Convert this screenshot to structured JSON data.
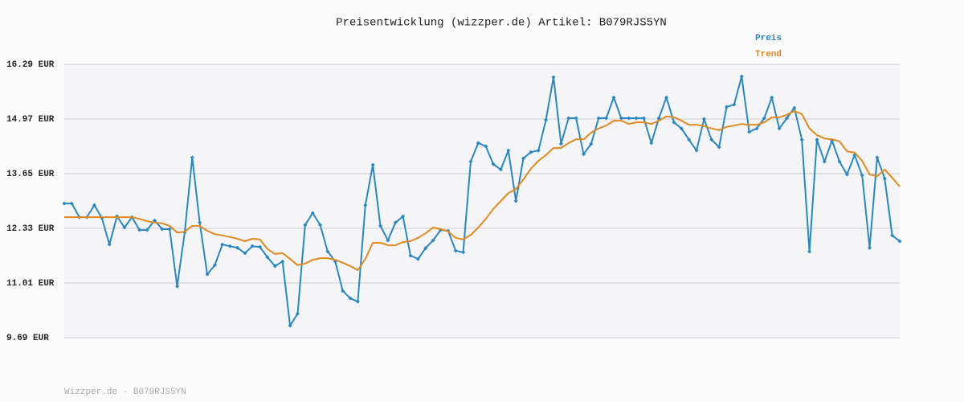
{
  "chart_data": {
    "type": "line",
    "title": "Preisentwicklung (wizzper.de) Artikel: B079RJS5YN",
    "footer": "Wizzper.de - B079RJS5YN",
    "ylim": [
      9.69,
      16.29
    ],
    "yticks": [
      {
        "value": 9.69,
        "label": "9.69 EUR"
      },
      {
        "value": 11.01,
        "label": "11.01 EUR"
      },
      {
        "value": 12.33,
        "label": "12.33 EUR"
      },
      {
        "value": 13.65,
        "label": "13.65 EUR"
      },
      {
        "value": 14.97,
        "label": "14.97 EUR"
      },
      {
        "value": 16.29,
        "label": "16.29 EUR"
      }
    ],
    "grid": true,
    "legend": "top-right",
    "series": [
      {
        "name": "Preis",
        "color": "#2a87c0",
        "markers": true,
        "values": [
          12.93,
          12.93,
          12.6,
          12.6,
          12.89,
          12.58,
          11.94,
          12.62,
          12.35,
          12.6,
          12.29,
          12.29,
          12.52,
          12.31,
          12.31,
          10.93,
          12.23,
          14.04,
          12.47,
          11.22,
          11.44,
          11.94,
          11.9,
          11.86,
          11.73,
          11.9,
          11.88,
          11.63,
          11.42,
          11.53,
          9.98,
          10.27,
          12.41,
          12.7,
          12.41,
          11.77,
          11.53,
          10.82,
          10.64,
          10.56,
          12.89,
          13.86,
          12.39,
          12.04,
          12.47,
          12.62,
          11.67,
          11.59,
          11.85,
          12.04,
          12.29,
          12.27,
          11.79,
          11.75,
          13.94,
          14.39,
          14.31,
          13.88,
          13.75,
          14.21,
          12.99,
          14.02,
          14.17,
          14.21,
          14.95,
          15.98,
          14.37,
          14.99,
          14.99,
          14.12,
          14.37,
          14.99,
          14.99,
          15.49,
          14.99,
          14.99,
          14.99,
          14.99,
          14.39,
          14.99,
          15.49,
          14.89,
          14.74,
          14.47,
          14.21,
          14.97,
          14.47,
          14.29,
          15.26,
          15.32,
          16.0,
          14.66,
          14.74,
          14.99,
          15.49,
          14.74,
          14.99,
          15.24,
          14.47,
          11.77,
          14.47,
          13.94,
          14.45,
          13.94,
          13.63,
          14.1,
          13.61,
          11.86,
          14.04,
          13.53,
          12.16,
          12.02
        ]
      },
      {
        "name": "Trend",
        "color": "#e08a20",
        "markers": false,
        "values": [
          12.6,
          12.6,
          12.6,
          12.6,
          12.6,
          12.6,
          12.6,
          12.6,
          12.6,
          12.6,
          12.56,
          12.5,
          12.47,
          12.45,
          12.39,
          12.23,
          12.25,
          12.39,
          12.39,
          12.27,
          12.19,
          12.16,
          12.12,
          12.08,
          12.02,
          12.08,
          12.06,
          11.83,
          11.71,
          11.73,
          11.59,
          11.44,
          11.48,
          11.57,
          11.61,
          11.61,
          11.57,
          11.5,
          11.42,
          11.32,
          11.59,
          11.98,
          11.98,
          11.92,
          11.92,
          12.0,
          12.02,
          12.1,
          12.21,
          12.35,
          12.31,
          12.25,
          12.1,
          12.06,
          12.17,
          12.35,
          12.56,
          12.8,
          12.99,
          13.18,
          13.28,
          13.51,
          13.77,
          13.96,
          14.1,
          14.27,
          14.27,
          14.39,
          14.48,
          14.48,
          14.64,
          14.74,
          14.81,
          14.93,
          14.93,
          14.85,
          14.89,
          14.89,
          14.85,
          14.93,
          15.03,
          15.01,
          14.93,
          14.83,
          14.83,
          14.8,
          14.74,
          14.7,
          14.78,
          14.81,
          14.85,
          14.83,
          14.83,
          14.89,
          15.01,
          15.01,
          15.07,
          15.16,
          15.09,
          14.74,
          14.58,
          14.5,
          14.48,
          14.43,
          14.19,
          14.16,
          13.96,
          13.63,
          13.59,
          13.75,
          13.55,
          13.34
        ]
      }
    ]
  }
}
